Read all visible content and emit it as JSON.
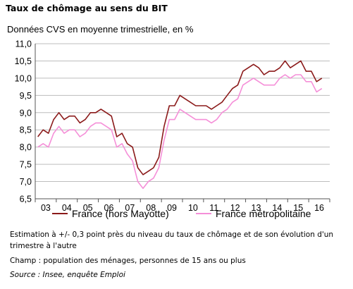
{
  "title": "Taux de chômage au sens du BIT",
  "subtitle": "Données CVS en moyenne trimestrielle, en %",
  "notes": {
    "estimation": "Estimation à +/- 0,3 point près du niveau du taux de chômage et de son évolution d'un trimestre à l'autre",
    "champ": "Champ : population des ménages, personnes de 15 ans ou plus",
    "source": "Source : Insee, enquête Emploi"
  },
  "chart_data": {
    "type": "line",
    "title": "Taux de chômage au sens du BIT",
    "subtitle": "Données CVS en moyenne trimestrielle, en %",
    "x_tick_labels": [
      "03",
      "04",
      "05",
      "06",
      "07",
      "08",
      "09",
      "10",
      "11",
      "12",
      "13",
      "14",
      "15",
      "16"
    ],
    "y_tick_labels": [
      "6,5",
      "7,0",
      "7,5",
      "8,0",
      "8,5",
      "9,0",
      "9,5",
      "10,0",
      "10,5",
      "11,0"
    ],
    "ylim": [
      6.5,
      11.0
    ],
    "y_step": 0.5,
    "grid": "horizontal",
    "legend_position": "bottom",
    "x_quarters": [
      "2003T1",
      "2003T2",
      "2003T3",
      "2003T4",
      "2004T1",
      "2004T2",
      "2004T3",
      "2004T4",
      "2005T1",
      "2005T2",
      "2005T3",
      "2005T4",
      "2006T1",
      "2006T2",
      "2006T3",
      "2006T4",
      "2007T1",
      "2007T2",
      "2007T3",
      "2007T4",
      "2008T1",
      "2008T2",
      "2008T3",
      "2008T4",
      "2009T1",
      "2009T2",
      "2009T3",
      "2009T4",
      "2010T1",
      "2010T2",
      "2010T3",
      "2010T4",
      "2011T1",
      "2011T2",
      "2011T3",
      "2011T4",
      "2012T1",
      "2012T2",
      "2012T3",
      "2012T4",
      "2013T1",
      "2013T2",
      "2013T3",
      "2013T4",
      "2014T1",
      "2014T2",
      "2014T3",
      "2014T4",
      "2015T1",
      "2015T2",
      "2015T3",
      "2015T4",
      "2016T1",
      "2016T2",
      "2016T3"
    ],
    "series": [
      {
        "name": "France (hors Mayotte)",
        "color": "#8b1a1a",
        "values": [
          8.3,
          8.5,
          8.4,
          8.8,
          9.0,
          8.8,
          8.9,
          8.9,
          8.7,
          8.8,
          9.0,
          9.0,
          9.1,
          9.0,
          8.9,
          8.3,
          8.4,
          8.1,
          8.0,
          7.4,
          7.2,
          7.3,
          7.4,
          7.7,
          8.6,
          9.2,
          9.2,
          9.5,
          9.4,
          9.3,
          9.2,
          9.2,
          9.2,
          9.1,
          9.2,
          9.3,
          9.5,
          9.7,
          9.8,
          10.2,
          10.3,
          10.4,
          10.3,
          10.1,
          10.2,
          10.2,
          10.3,
          10.5,
          10.3,
          10.4,
          10.5,
          10.2,
          10.2,
          9.9,
          10.0
        ]
      },
      {
        "name": "France métropolitaine",
        "color": "#f58fd8",
        "values": [
          8.0,
          8.1,
          8.0,
          8.4,
          8.6,
          8.4,
          8.5,
          8.5,
          8.3,
          8.4,
          8.6,
          8.7,
          8.7,
          8.6,
          8.5,
          8.0,
          8.1,
          7.8,
          7.6,
          7.0,
          6.8,
          7.0,
          7.1,
          7.4,
          8.2,
          8.8,
          8.8,
          9.1,
          9.0,
          8.9,
          8.8,
          8.8,
          8.8,
          8.7,
          8.8,
          9.0,
          9.1,
          9.3,
          9.4,
          9.8,
          9.9,
          10.0,
          9.9,
          9.8,
          9.8,
          9.8,
          10.0,
          10.1,
          10.0,
          10.1,
          10.1,
          9.9,
          9.9,
          9.6,
          9.7
        ]
      }
    ]
  }
}
